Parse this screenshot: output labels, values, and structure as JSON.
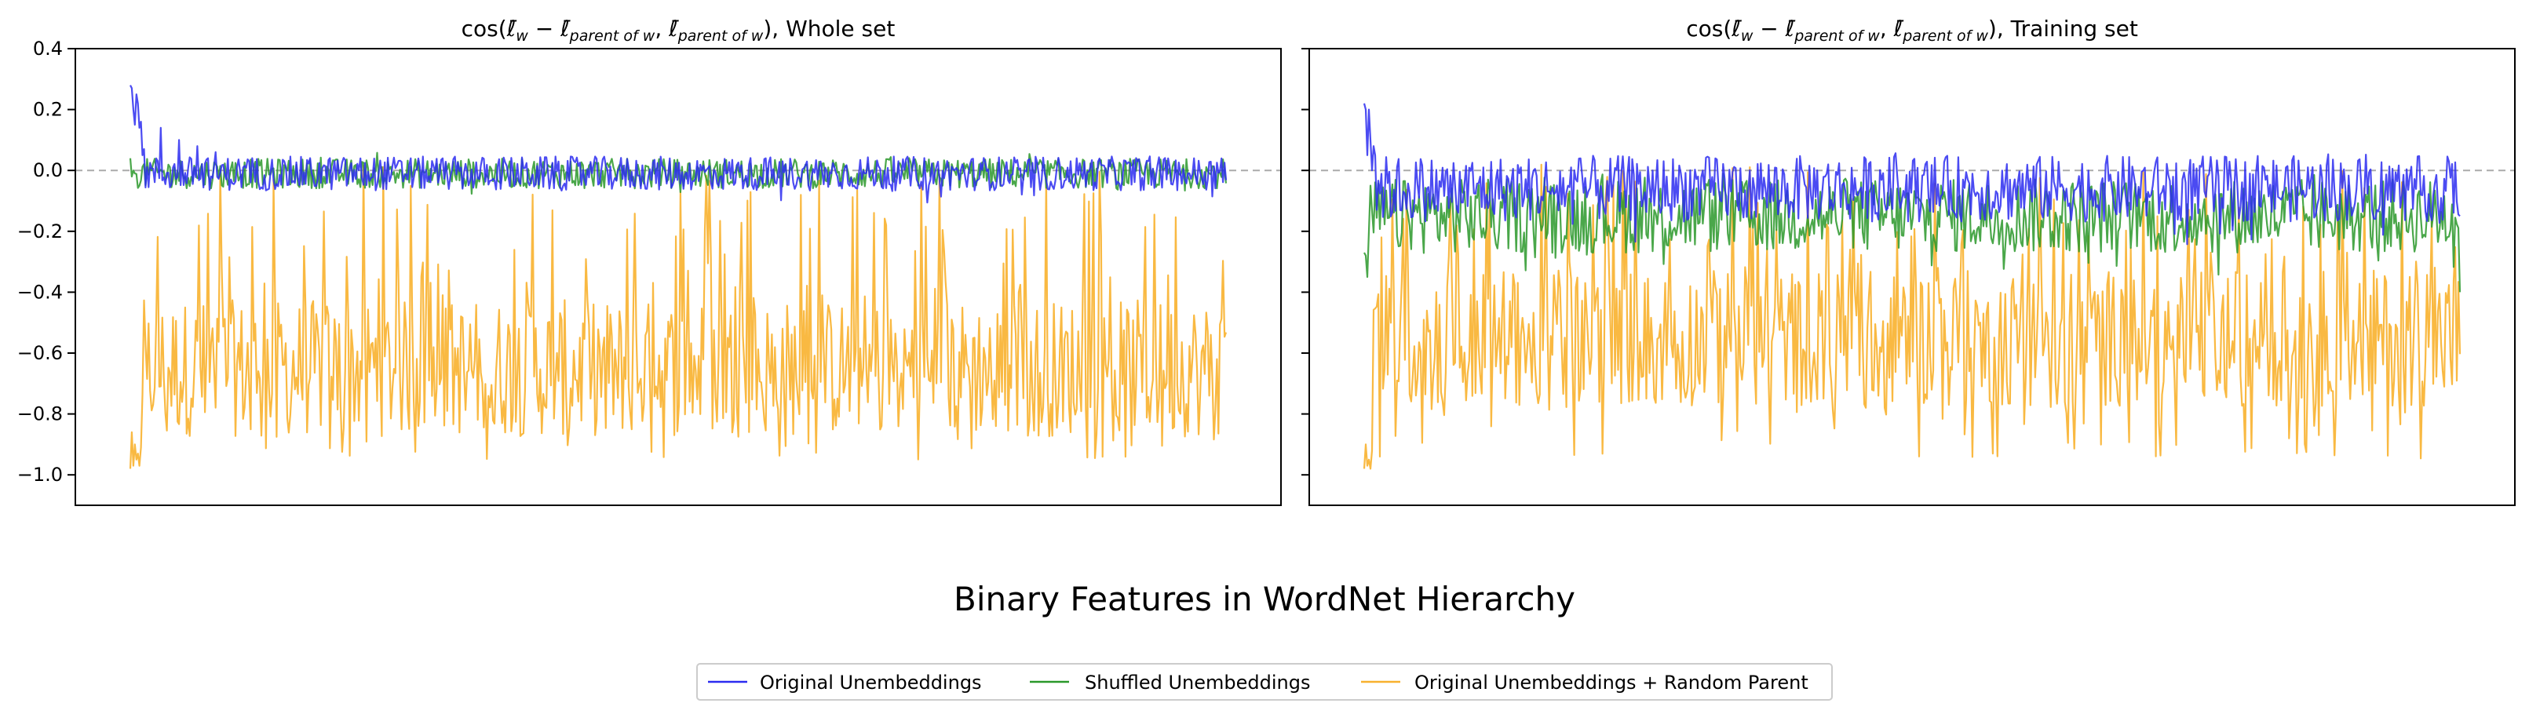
{
  "suptitle": "Binary Features in WordNet Hierarchy",
  "legend": {
    "entries": [
      "Original Unembeddings",
      "Shuffled Unembeddings",
      "Original Unembeddings + Random Parent"
    ]
  },
  "colors": {
    "original": "#2b2bf0",
    "shuffled": "#2a982a",
    "random_parent": "#f8b12e",
    "reference": "#aaaaaa",
    "frame": "#000000"
  },
  "chart_data": [
    {
      "type": "line",
      "title": "cos(ℓ̄w − ℓ̄parent of w, ℓ̄parent of w), Whole set",
      "title_parts": {
        "prefix": "cos(",
        "l1": "ℓ̄",
        "s1": "w",
        "minus": " − ",
        "l2": "ℓ̄",
        "s2": "parent of w",
        "comma": ", ",
        "l3": "ℓ̄",
        "s3": "parent of w",
        "suffix": "), Whole set"
      },
      "xlabel": "",
      "ylabel": "",
      "x_ticks": "none",
      "ylim": [
        -1.1,
        0.4
      ],
      "yticks": [
        "0.4",
        "0.2",
        "0.0",
        "−0.2",
        "−0.4",
        "−0.6",
        "−0.8",
        "−1.0"
      ],
      "reference_line": {
        "y": 0.0,
        "style": "dashed"
      },
      "n_points": 720,
      "series": [
        {
          "name": "Original Unembeddings",
          "color": "#2b2bf0",
          "profile": {
            "start": [
              0.28,
              0.27,
              0.2,
              0.15,
              0.25,
              0.22,
              0.14,
              0.16,
              0.05,
              0.07
            ],
            "later_spikes": [
              0.14,
              0.1,
              0.08,
              0.06
            ],
            "typical_mean": -0.01,
            "typical_range": [
              -0.11,
              0.05
            ]
          }
        },
        {
          "name": "Shuffled Unembeddings",
          "color": "#2a982a",
          "profile": {
            "start": [
              0.04,
              -0.02,
              0.0,
              -0.01
            ],
            "typical_mean": -0.01,
            "typical_range": [
              -0.08,
              0.06
            ]
          }
        },
        {
          "name": "Original Unembeddings + Random Parent",
          "color": "#f8b12e",
          "profile": {
            "start": [
              -0.98,
              -0.86,
              -0.97,
              -0.9,
              -0.95,
              -0.93,
              -0.97,
              -0.91
            ],
            "typical_mean": -0.65,
            "typical_range": [
              -0.98,
              0.02
            ]
          }
        }
      ]
    },
    {
      "type": "line",
      "title": "cos(ℓ̄w − ℓ̄parent of w, ℓ̄parent of w), Training set",
      "title_parts": {
        "prefix": "cos(",
        "l1": "ℓ̄",
        "s1": "w",
        "minus": " − ",
        "l2": "ℓ̄",
        "s2": "parent of w",
        "comma": ", ",
        "l3": "ℓ̄",
        "s3": "parent of w",
        "suffix": "), Training set"
      },
      "xlabel": "",
      "ylabel": "",
      "x_ticks": "none",
      "ylim": [
        -1.1,
        0.4
      ],
      "yticks": [
        "0.4",
        "0.2",
        "0.0",
        "−0.2",
        "−0.4",
        "−0.6",
        "−0.8",
        "−1.0"
      ],
      "ytick_labels_shown": false,
      "reference_line": {
        "y": 0.0,
        "style": "dashed"
      },
      "n_points": 700,
      "series": [
        {
          "name": "Original Unembeddings",
          "color": "#2b2bf0",
          "profile": {
            "start": [
              0.22,
              0.2,
              0.05,
              0.2,
              0.1,
              0.0,
              0.08,
              0.05
            ],
            "typical_mean": -0.06,
            "typical_range": [
              -0.25,
              0.06
            ],
            "end": -0.15
          }
        },
        {
          "name": "Shuffled Unembeddings",
          "color": "#2a982a",
          "profile": {
            "start": [
              -0.27,
              -0.28,
              -0.35,
              -0.2,
              -0.05
            ],
            "typical_mean": -0.15,
            "typical_range": [
              -0.35,
              0.0
            ],
            "end": -0.4
          }
        },
        {
          "name": "Original Unembeddings + Random Parent",
          "color": "#f8b12e",
          "profile": {
            "start": [
              -0.98,
              -0.9,
              -0.97,
              -0.95,
              -0.98,
              -0.92
            ],
            "typical_mean": -0.55,
            "typical_range": [
              -0.98,
              0.02
            ]
          }
        }
      ]
    }
  ]
}
